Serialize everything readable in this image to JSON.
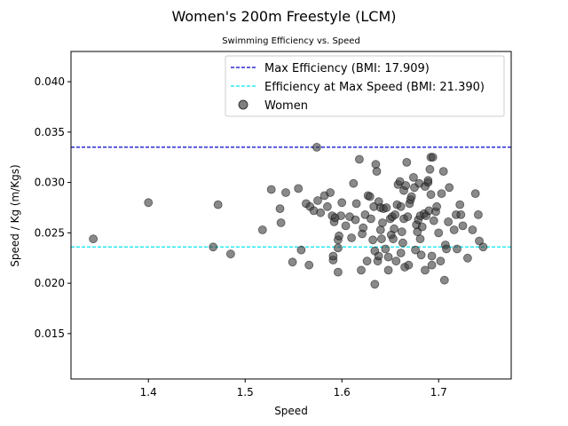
{
  "chart_data": {
    "type": "scatter",
    "title": "Women's 200m Freestyle (LCM)",
    "subtitle": "Swimming Efficiency vs. Speed",
    "xlabel": "Speed",
    "ylabel": "Speed / Kg (m/Kgs)",
    "xlim": [
      1.32,
      1.775
    ],
    "ylim": [
      0.0105,
      0.043
    ],
    "xticks": [
      1.4,
      1.5,
      1.6,
      1.7
    ],
    "xtick_labels": [
      "1.4",
      "1.5",
      "1.6",
      "1.7"
    ],
    "yticks": [
      0.015,
      0.02,
      0.025,
      0.03,
      0.035,
      0.04
    ],
    "ytick_labels": [
      "0.015",
      "0.020",
      "0.025",
      "0.030",
      "0.035",
      "0.040"
    ],
    "grid": false,
    "legend_position": "top-right",
    "reference_lines": [
      {
        "name": "Max Efficiency (BMI: 17.909)",
        "y": 0.0335,
        "color": "#0000cc",
        "style": "dashed"
      },
      {
        "name": "Efficiency at Max Speed (BMI: 21.390)",
        "y": 0.0236,
        "color": "#00e5ee",
        "style": "dashed"
      }
    ],
    "series": [
      {
        "name": "Women",
        "color": "#3a3a3a",
        "points": [
          [
            1.343,
            0.0244
          ],
          [
            1.4,
            0.028
          ],
          [
            1.467,
            0.0236
          ],
          [
            1.472,
            0.0278
          ],
          [
            1.485,
            0.0229
          ],
          [
            1.518,
            0.0253
          ],
          [
            1.527,
            0.0293
          ],
          [
            1.536,
            0.0274
          ],
          [
            1.537,
            0.026
          ],
          [
            1.542,
            0.029
          ],
          [
            1.549,
            0.0221
          ],
          [
            1.555,
            0.0294
          ],
          [
            1.558,
            0.0233
          ],
          [
            1.563,
            0.0279
          ],
          [
            1.566,
            0.0218
          ],
          [
            1.567,
            0.0276
          ],
          [
            1.571,
            0.0272
          ],
          [
            1.574,
            0.0335
          ],
          [
            1.575,
            0.0282
          ],
          [
            1.578,
            0.027
          ],
          [
            1.582,
            0.0287
          ],
          [
            1.585,
            0.0276
          ],
          [
            1.588,
            0.029
          ],
          [
            1.59,
            0.0267
          ],
          [
            1.591,
            0.0223
          ],
          [
            1.591,
            0.0227
          ],
          [
            1.592,
            0.0261
          ],
          [
            1.593,
            0.0265
          ],
          [
            1.596,
            0.0243
          ],
          [
            1.596,
            0.0235
          ],
          [
            1.596,
            0.0211
          ],
          [
            1.597,
            0.0247
          ],
          [
            1.599,
            0.0267
          ],
          [
            1.6,
            0.028
          ],
          [
            1.604,
            0.0257
          ],
          [
            1.608,
            0.0266
          ],
          [
            1.61,
            0.0245
          ],
          [
            1.612,
            0.0299
          ],
          [
            1.614,
            0.0263
          ],
          [
            1.615,
            0.0279
          ],
          [
            1.618,
            0.0323
          ],
          [
            1.62,
            0.0213
          ],
          [
            1.621,
            0.0249
          ],
          [
            1.622,
            0.0255
          ],
          [
            1.624,
            0.0268
          ],
          [
            1.626,
            0.0222
          ],
          [
            1.627,
            0.0287
          ],
          [
            1.629,
            0.0286
          ],
          [
            1.63,
            0.0264
          ],
          [
            1.632,
            0.0243
          ],
          [
            1.633,
            0.0276
          ],
          [
            1.634,
            0.0232
          ],
          [
            1.634,
            0.0199
          ],
          [
            1.635,
            0.0318
          ],
          [
            1.636,
            0.0311
          ],
          [
            1.637,
            0.0222
          ],
          [
            1.638,
            0.0227
          ],
          [
            1.638,
            0.0281
          ],
          [
            1.64,
            0.0275
          ],
          [
            1.64,
            0.0253
          ],
          [
            1.641,
            0.0244
          ],
          [
            1.642,
            0.026
          ],
          [
            1.643,
            0.0274
          ],
          [
            1.645,
            0.0234
          ],
          [
            1.646,
            0.0275
          ],
          [
            1.648,
            0.0213
          ],
          [
            1.648,
            0.0226
          ],
          [
            1.65,
            0.0264
          ],
          [
            1.651,
            0.0248
          ],
          [
            1.652,
            0.0266
          ],
          [
            1.653,
            0.0244
          ],
          [
            1.654,
            0.0254
          ],
          [
            1.655,
            0.0268
          ],
          [
            1.656,
            0.0222
          ],
          [
            1.657,
            0.0278
          ],
          [
            1.658,
            0.0298
          ],
          [
            1.66,
            0.0301
          ],
          [
            1.661,
            0.0276
          ],
          [
            1.661,
            0.023
          ],
          [
            1.662,
            0.0251
          ],
          [
            1.663,
            0.024
          ],
          [
            1.664,
            0.0292
          ],
          [
            1.664,
            0.0264
          ],
          [
            1.665,
            0.0216
          ],
          [
            1.666,
            0.0297
          ],
          [
            1.667,
            0.032
          ],
          [
            1.668,
            0.0266
          ],
          [
            1.669,
            0.0218
          ],
          [
            1.67,
            0.0279
          ],
          [
            1.671,
            0.0283
          ],
          [
            1.672,
            0.0286
          ],
          [
            1.674,
            0.0305
          ],
          [
            1.675,
            0.0295
          ],
          [
            1.676,
            0.0233
          ],
          [
            1.677,
            0.0258
          ],
          [
            1.678,
            0.0251
          ],
          [
            1.679,
            0.0263
          ],
          [
            1.68,
            0.0299
          ],
          [
            1.681,
            0.0267
          ],
          [
            1.681,
            0.0244
          ],
          [
            1.682,
            0.0228
          ],
          [
            1.683,
            0.0256
          ],
          [
            1.685,
            0.0269
          ],
          [
            1.686,
            0.0296
          ],
          [
            1.686,
            0.0213
          ],
          [
            1.687,
            0.0267
          ],
          [
            1.689,
            0.03
          ],
          [
            1.689,
            0.0302
          ],
          [
            1.69,
            0.0272
          ],
          [
            1.691,
            0.0313
          ],
          [
            1.692,
            0.0325
          ],
          [
            1.692,
            0.0288
          ],
          [
            1.693,
            0.0218
          ],
          [
            1.693,
            0.0227
          ],
          [
            1.694,
            0.0325
          ],
          [
            1.695,
            0.0262
          ],
          [
            1.697,
            0.0271
          ],
          [
            1.698,
            0.0276
          ],
          [
            1.7,
            0.025
          ],
          [
            1.702,
            0.0222
          ],
          [
            1.703,
            0.0289
          ],
          [
            1.705,
            0.0311
          ],
          [
            1.706,
            0.0203
          ],
          [
            1.707,
            0.0238
          ],
          [
            1.708,
            0.0234
          ],
          [
            1.71,
            0.0261
          ],
          [
            1.711,
            0.0295
          ],
          [
            1.716,
            0.0253
          ],
          [
            1.718,
            0.0268
          ],
          [
            1.719,
            0.0234
          ],
          [
            1.722,
            0.0278
          ],
          [
            1.723,
            0.0268
          ],
          [
            1.725,
            0.0257
          ],
          [
            1.73,
            0.0225
          ],
          [
            1.735,
            0.0253
          ],
          [
            1.738,
            0.0289
          ],
          [
            1.741,
            0.0268
          ],
          [
            1.742,
            0.0242
          ],
          [
            1.746,
            0.0236
          ]
        ]
      }
    ]
  }
}
